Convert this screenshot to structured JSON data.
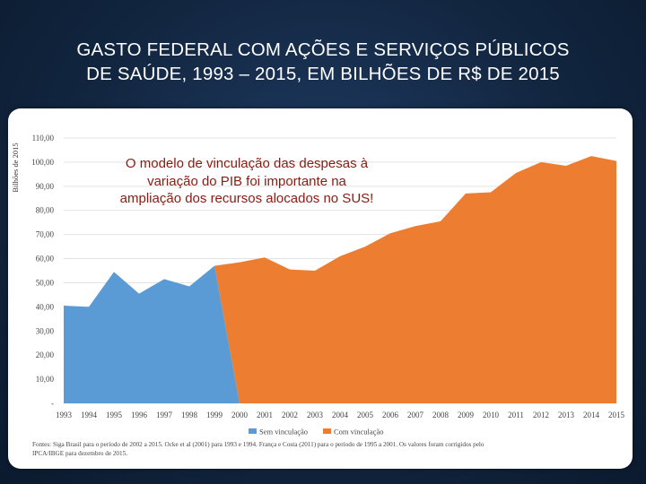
{
  "title": {
    "line1": "GASTO FEDERAL COM AÇÕES E SERVIÇOS PÚBLICOS",
    "line2": "DE SAÚDE, 1993 – 2015, EM BILHÕES DE R$ DE 2015"
  },
  "annotation": "O modelo de vinculação das despesas à variação do PIB foi importante na ampliação dos recursos alocados no SUS!",
  "colors": {
    "sem_vinculacao": "#5b9bd5",
    "com_vinculacao": "#ed7d31"
  },
  "chart_data": {
    "type": "area",
    "title": "GASTO FEDERAL COM AÇÕES E SERVIÇOS PÚBLICOS DE SAÚDE, 1993 – 2015, EM BILHÕES DE R$ DE 2015",
    "ylabel": "Bilhões de 2015",
    "xlabel": "",
    "ylim": [
      0,
      110
    ],
    "yticks": [
      "-",
      "10,00",
      "20,00",
      "30,00",
      "40,00",
      "50,00",
      "60,00",
      "70,00",
      "80,00",
      "90,00",
      "100,00",
      "110,00"
    ],
    "x": [
      "1993",
      "1994",
      "1995",
      "1996",
      "1997",
      "1998",
      "1999",
      "2000",
      "2001",
      "2002",
      "2003",
      "2004",
      "2005",
      "2006",
      "2007",
      "2008",
      "2009",
      "2010",
      "2011",
      "2012",
      "2013",
      "2014",
      "2015"
    ],
    "series": [
      {
        "name": "Sem vinculação",
        "values": [
          40.5,
          40.0,
          54.5,
          45.5,
          51.5,
          48.5,
          57.0,
          null,
          null,
          null,
          null,
          null,
          null,
          null,
          null,
          null,
          null,
          null,
          null,
          null,
          null,
          null,
          null
        ]
      },
      {
        "name": "Com vinculação",
        "values": [
          null,
          null,
          null,
          null,
          null,
          null,
          57.0,
          58.5,
          60.5,
          55.5,
          55.0,
          61.0,
          65.0,
          70.5,
          73.5,
          75.5,
          87.0,
          87.5,
          95.5,
          100.0,
          98.5,
          102.5,
          100.5
        ]
      }
    ],
    "legend": "bottom-center",
    "source": [
      "Fontes: Siga Brasil para o período de 2002 a 2015. Ocke et al (2001) para 1993 e 1994. França e Costa (2011) para o período de 1995 a 2001. Os valores foram corrigidos pelo",
      "IPCA/IBGE para dezembro de 2015."
    ]
  }
}
